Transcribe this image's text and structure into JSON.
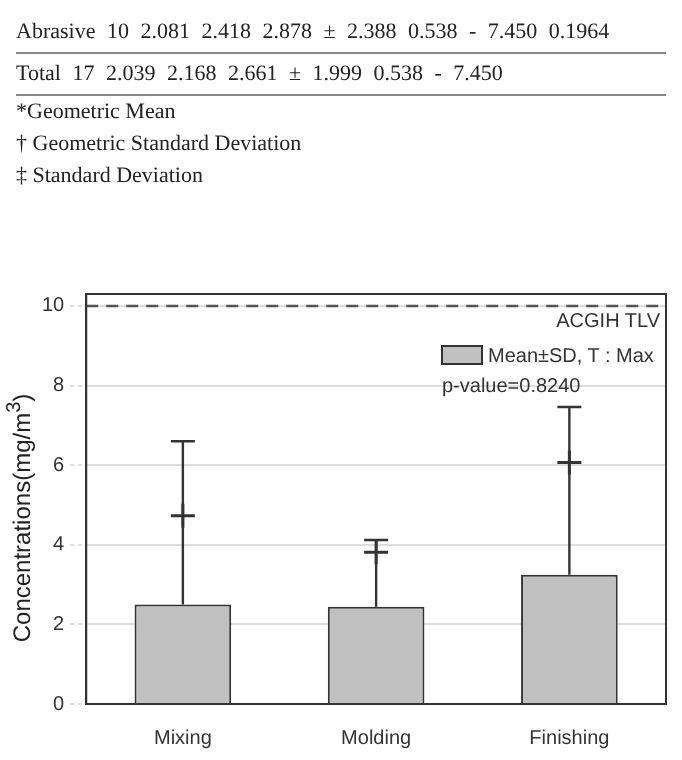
{
  "chart_data": {
    "type": "bar",
    "ylabel": "Concentrations(mg/m$^{3}$)",
    "categories": [
      "Mixing",
      "Molding",
      "Finishing"
    ],
    "series": [
      {
        "name": "Mean±SD, T : Max",
        "color": "#c0c0c0",
        "values": [
          2.5,
          2.44,
          3.25
        ],
        "errors": [
          [
            2.5,
            6.6
          ],
          [
            2.44,
            4.12
          ],
          [
            3.25,
            7.46
          ]
        ]
      },
      {
        "type": "scatter",
        "marker": "cross",
        "color": "#333333",
        "values": [
          4.73,
          3.81,
          6.07
        ]
      }
    ],
    "ylim": [
      0,
      10.3
    ],
    "yticks": [
      0,
      2,
      4,
      6,
      8,
      10
    ],
    "grid": "y",
    "legend": "top right",
    "ref_lines": [
      {
        "axis": "y",
        "value": 10,
        "label": "ACGIH TLV",
        "color": "#555555",
        "line_style": "dashed"
      }
    ],
    "annotations": [
      "Abrasive   10   2.081   2.418   2.878 ± 2.388   0.538 - 7.450   0.1964",
      "Total   17   2.039   2.168   2.661 ± 1.999   0.538 - 7.450",
      "*Geometric Mean",
      "† Geometric Standard Deviation",
      "‡ Standard Deviation",
      "p-value=0.8240"
    ]
  }
}
